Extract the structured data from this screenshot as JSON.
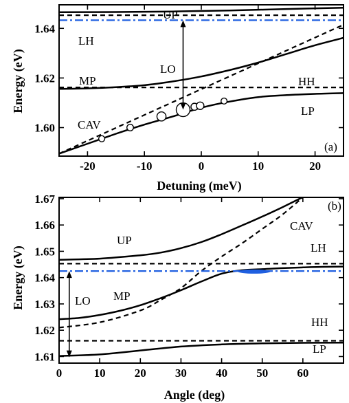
{
  "colors": {
    "laser_line": "#1f5fe0",
    "condensate": "#1f5fe0",
    "ink": "#000000"
  },
  "chart_data": [
    {
      "type": "line",
      "panel": "(a)",
      "xlabel": "Detuning (meV)",
      "ylabel": "Energy (eV)",
      "xlim": [
        -25,
        25
      ],
      "ylim": [
        1.5885,
        1.6495
      ],
      "xticks": [
        -20,
        -10,
        0,
        10,
        20
      ],
      "yticks": [
        1.6,
        1.62,
        1.64
      ],
      "yticklabels": [
        "1.60",
        "1.62",
        "1.64"
      ],
      "series": [
        {
          "name": "UP",
          "style": "solid",
          "x": [
            -25,
            -15,
            -5,
            5,
            15,
            25
          ],
          "y": [
            1.6465,
            1.6466,
            1.6468,
            1.6472,
            1.6478,
            1.6483
          ]
        },
        {
          "name": "MP",
          "style": "solid",
          "x": [
            -25,
            -20,
            -15,
            -10,
            -5,
            0,
            5,
            10,
            15,
            20,
            25
          ],
          "y": [
            1.6156,
            1.6158,
            1.6163,
            1.6171,
            1.6186,
            1.6206,
            1.6232,
            1.6262,
            1.6297,
            1.6332,
            1.6362
          ]
        },
        {
          "name": "LP",
          "style": "solid",
          "x": [
            -25,
            -20,
            -15,
            -10,
            -5,
            0,
            5,
            10,
            15,
            20,
            25
          ],
          "y": [
            1.5895,
            1.5935,
            1.5975,
            1.6012,
            1.6045,
            1.608,
            1.6105,
            1.6123,
            1.6131,
            1.6136,
            1.6139
          ]
        },
        {
          "name": "LH",
          "style": "dashed",
          "x": [
            -25,
            25
          ],
          "y": [
            1.6453,
            1.6453
          ]
        },
        {
          "name": "HH",
          "style": "dashed",
          "x": [
            -25,
            25
          ],
          "y": [
            1.6162,
            1.6162
          ]
        },
        {
          "name": "CAV",
          "style": "dashed",
          "x": [
            -25,
            25
          ],
          "y": [
            1.5895,
            1.6415
          ]
        },
        {
          "name": "laser",
          "style": "dash-dot",
          "x": [
            -25,
            25
          ],
          "y": [
            1.6433,
            1.6433
          ]
        }
      ],
      "markers": {
        "x": [
          -17.5,
          -12.5,
          -7,
          -3.2,
          -1.2,
          -0.2,
          4
        ],
        "y": [
          1.5955,
          1.6,
          1.6045,
          1.6072,
          1.6084,
          1.6088,
          1.6107
        ],
        "relative_size": [
          0.25,
          0.3,
          0.55,
          1.0,
          0.35,
          0.4,
          0.25
        ]
      },
      "annotations": {
        "labels": [
          "UP",
          "LH",
          "LO",
          "MP",
          "HH",
          "CAV",
          "LP"
        ],
        "arrow": {
          "label": "LO",
          "x": -3.2,
          "y_from": 1.6433,
          "y_to": 1.6072
        }
      }
    },
    {
      "type": "line",
      "panel": "(b)",
      "xlabel": "Angle (deg)",
      "ylabel": "Energy (eV)",
      "xlim": [
        0,
        70
      ],
      "ylim": [
        1.6075,
        1.6705
      ],
      "xticks": [
        0,
        10,
        20,
        30,
        40,
        50,
        60
      ],
      "yticks": [
        1.61,
        1.62,
        1.63,
        1.64,
        1.65,
        1.66,
        1.67
      ],
      "yticklabels": [
        "1.61",
        "1.62",
        "1.63",
        "1.64",
        "1.65",
        "1.66",
        "1.67"
      ],
      "series": [
        {
          "name": "UP",
          "style": "solid",
          "x": [
            0,
            10,
            20,
            25,
            30,
            35,
            40,
            45,
            50,
            55,
            60
          ],
          "y": [
            1.6468,
            1.6472,
            1.6485,
            1.6495,
            1.6512,
            1.6535,
            1.6565,
            1.6598,
            1.6632,
            1.6668,
            1.6706
          ]
        },
        {
          "name": "MP",
          "style": "solid",
          "x": [
            0,
            5,
            10,
            15,
            20,
            25,
            30,
            35,
            40,
            45,
            50,
            55,
            60,
            65,
            70
          ],
          "y": [
            1.6242,
            1.6247,
            1.6258,
            1.6274,
            1.6295,
            1.6322,
            1.6352,
            1.6385,
            1.6415,
            1.6428,
            1.6432,
            1.6436,
            1.6439,
            1.6441,
            1.6442
          ]
        },
        {
          "name": "LP",
          "style": "solid",
          "x": [
            0,
            10,
            20,
            30,
            40,
            50,
            60,
            70
          ],
          "y": [
            1.6102,
            1.6108,
            1.6123,
            1.6138,
            1.6146,
            1.615,
            1.6152,
            1.6153
          ]
        },
        {
          "name": "CAV",
          "style": "dashed",
          "x": [
            0,
            10,
            20,
            25,
            30,
            35,
            40,
            45,
            50,
            55,
            60
          ],
          "y": [
            1.621,
            1.623,
            1.6275,
            1.6315,
            1.636,
            1.6425,
            1.648,
            1.653,
            1.6585,
            1.664,
            1.6705
          ]
        },
        {
          "name": "LH",
          "style": "dashed",
          "x": [
            0,
            70
          ],
          "y": [
            1.6453,
            1.6453
          ]
        },
        {
          "name": "HH",
          "style": "dashed",
          "x": [
            0,
            70
          ],
          "y": [
            1.616,
            1.616
          ]
        },
        {
          "name": "laser",
          "style": "dash-dot",
          "x": [
            0,
            70
          ],
          "y": [
            1.6425,
            1.6425
          ]
        }
      ],
      "condensate": {
        "x": 48,
        "y": 1.6423,
        "x_halfwidth": 4,
        "y_halfheight": 0.0008
      },
      "annotations": {
        "labels": [
          "CAV",
          "UP",
          "LH",
          "MP",
          "HH",
          "LP",
          "LO"
        ],
        "arrow": {
          "label": "LO",
          "x": 2.5,
          "y_from": 1.6425,
          "y_to": 1.6097
        }
      }
    }
  ]
}
